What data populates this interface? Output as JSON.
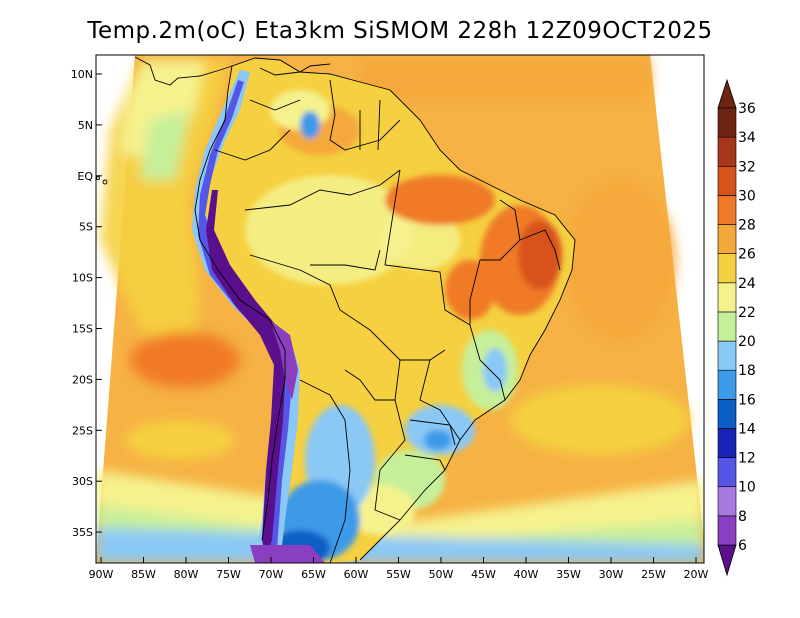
{
  "title": "Temp.2m(oC) Eta3km SiSMOM 228h 12Z09OCT2025",
  "lat_labels": [
    "10N",
    "5N",
    "EQ",
    "5S",
    "10S",
    "15S",
    "20S",
    "25S",
    "30S",
    "35S"
  ],
  "lon_labels": [
    "90W",
    "85W",
    "80W",
    "75W",
    "70W",
    "65W",
    "60W",
    "55W",
    "50W",
    "45W",
    "40W",
    "35W",
    "30W",
    "25W",
    "20W"
  ],
  "colorbar": {
    "labels": [
      "6",
      "8",
      "10",
      "12",
      "14",
      "16",
      "18",
      "20",
      "22",
      "24",
      "26",
      "28",
      "30",
      "32",
      "34",
      "36"
    ],
    "colors": [
      "#5a0f8c",
      "#8a3fc0",
      "#a87ae0",
      "#5555e6",
      "#1a22b8",
      "#0a5ec4",
      "#3d9ae8",
      "#8ac8f5",
      "#c6ef9a",
      "#f5f28e",
      "#f5d040",
      "#f5a83a",
      "#f07a28",
      "#d8521c",
      "#a8361a",
      "#6e2410"
    ]
  }
}
